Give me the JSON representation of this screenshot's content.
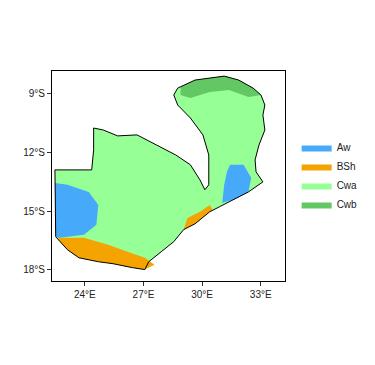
{
  "chart_data": {
    "type": "map",
    "xlim": [
      22.32,
      34.24
    ],
    "ylim": [
      -18.56,
      -7.88
    ],
    "xticks": [
      {
        "value": 24,
        "label": "24°E"
      },
      {
        "value": 27,
        "label": "27°E"
      },
      {
        "value": 30,
        "label": "30°E"
      },
      {
        "value": 33,
        "label": "33°E"
      }
    ],
    "yticks": [
      {
        "value": -9,
        "label": "9°S"
      },
      {
        "value": -12,
        "label": "12°S"
      },
      {
        "value": -15,
        "label": "15°S"
      },
      {
        "value": -18,
        "label": "18°S"
      }
    ],
    "grid": false,
    "legend": "right",
    "outline": {
      "x": [
        28.55,
        28.75,
        29.64,
        31.13,
        31.87,
        32.61,
        33.01,
        33.21,
        33.11,
        33.21,
        32.91,
        32.71,
        32.76,
        33.11,
        32.37,
        31.62,
        30.88,
        30.39,
        29.64,
        29.05,
        28.55,
        27.91,
        27.27,
        27.07,
        26.43,
        25.44,
        24.69,
        23.7,
        23.11,
        22.51,
        22.47,
        24.35,
        24.45,
        24.45,
        24.94,
        25.68,
        26.67,
        27.66,
        28.65,
        29.4,
        29.89,
        30.14,
        30.34,
        30.34,
        30.04,
        29.4,
        28.75,
        28.55
      ],
      "y": [
        -9.1,
        -8.75,
        -8.34,
        -8.14,
        -8.34,
        -8.75,
        -9.1,
        -9.61,
        -10.12,
        -10.88,
        -11.64,
        -12.4,
        -13.01,
        -13.52,
        -14.03,
        -14.43,
        -14.79,
        -15.04,
        -15.65,
        -15.95,
        -16.56,
        -17.07,
        -17.58,
        -17.98,
        -17.88,
        -17.68,
        -17.58,
        -17.38,
        -16.97,
        -16.31,
        -12.91,
        -12.91,
        -11.89,
        -10.78,
        -10.88,
        -11.18,
        -11.13,
        -11.64,
        -12.15,
        -12.65,
        -13.42,
        -13.92,
        -13.67,
        -12.15,
        -11.13,
        -10.27,
        -9.61,
        -9.1
      ]
    },
    "series": [
      {
        "name": "Aw",
        "color": "#46A9F9",
        "polygons": [
          {
            "x": [
              31.43,
              32.12,
              32.51,
              32.37,
              31.62,
              31.03,
              31.13,
              31.27,
              31.43
            ],
            "y": [
              -12.65,
              -12.65,
              -13.31,
              -14.03,
              -14.43,
              -14.58,
              -13.67,
              -13.01,
              -12.65
            ]
          },
          {
            "x": [
              22.47,
              23.11,
              24.2,
              24.69,
              24.59,
              23.95,
              22.71,
              22.51,
              22.47
            ],
            "y": [
              -13.57,
              -13.67,
              -14.03,
              -14.69,
              -15.7,
              -16.21,
              -16.36,
              -16.31,
              -13.57
            ]
          }
        ]
      },
      {
        "name": "BSh",
        "color": "#F5A300",
        "polygons": [
          {
            "x": [
              22.51,
              22.71,
              23.95,
              25.19,
              26.18,
              27.07,
              27.56,
              27.07,
              26.43,
              25.44,
              24.69,
              23.7,
              23.11,
              22.51
            ],
            "y": [
              -16.31,
              -16.36,
              -16.36,
              -16.72,
              -17.07,
              -17.38,
              -17.73,
              -17.98,
              -17.88,
              -17.68,
              -17.58,
              -17.38,
              -16.97,
              -16.31
            ]
          },
          {
            "x": [
              30.39,
              29.64,
              29.05,
              29.25,
              29.89,
              30.39,
              30.53,
              30.39
            ],
            "y": [
              -15.04,
              -15.65,
              -15.95,
              -15.35,
              -15.04,
              -14.69,
              -14.94,
              -15.04
            ]
          }
        ]
      },
      {
        "name": "Cwa",
        "color": "#96FF96",
        "polygons": [
          {
            "x": [
              28.55,
              28.75,
              29.64,
              31.13,
              31.87,
              32.61,
              33.01,
              33.21,
              33.11,
              33.21,
              32.91,
              32.71,
              32.76,
              33.11,
              32.37,
              31.62,
              30.88,
              30.39,
              29.64,
              29.05,
              28.55,
              27.91,
              27.27,
              27.07,
              26.43,
              25.44,
              24.69,
              23.7,
              23.11,
              22.51,
              22.47,
              24.35,
              24.45,
              24.45,
              24.94,
              25.68,
              26.67,
              27.66,
              28.65,
              29.4,
              29.89,
              30.14,
              30.34,
              30.34,
              30.04,
              29.4,
              28.75,
              28.55
            ],
            "y": [
              -9.1,
              -8.75,
              -8.34,
              -8.14,
              -8.34,
              -8.75,
              -9.1,
              -9.61,
              -10.12,
              -10.88,
              -11.64,
              -12.4,
              -13.01,
              -13.52,
              -14.03,
              -14.43,
              -14.79,
              -15.04,
              -15.65,
              -15.95,
              -16.56,
              -17.07,
              -17.58,
              -17.98,
              -17.88,
              -17.68,
              -17.58,
              -17.38,
              -16.97,
              -16.31,
              -12.91,
              -12.91,
              -11.89,
              -10.78,
              -10.88,
              -11.18,
              -11.13,
              -11.64,
              -12.15,
              -12.65,
              -13.42,
              -13.92,
              -13.67,
              -12.15,
              -11.13,
              -10.27,
              -9.61,
              -9.1
            ]
          }
        ]
      },
      {
        "name": "Cwb",
        "color": "#63C763",
        "polygons": [
          {
            "x": [
              28.9,
              29.64,
              31.13,
              31.87,
              32.61,
              33.01,
              32.37,
              31.38,
              30.39,
              29.4,
              28.9,
              28.9
            ],
            "y": [
              -8.7,
              -8.34,
              -8.14,
              -8.34,
              -8.75,
              -9.1,
              -9.2,
              -8.85,
              -8.95,
              -9.25,
              -9.1,
              -8.7
            ]
          }
        ]
      }
    ]
  }
}
